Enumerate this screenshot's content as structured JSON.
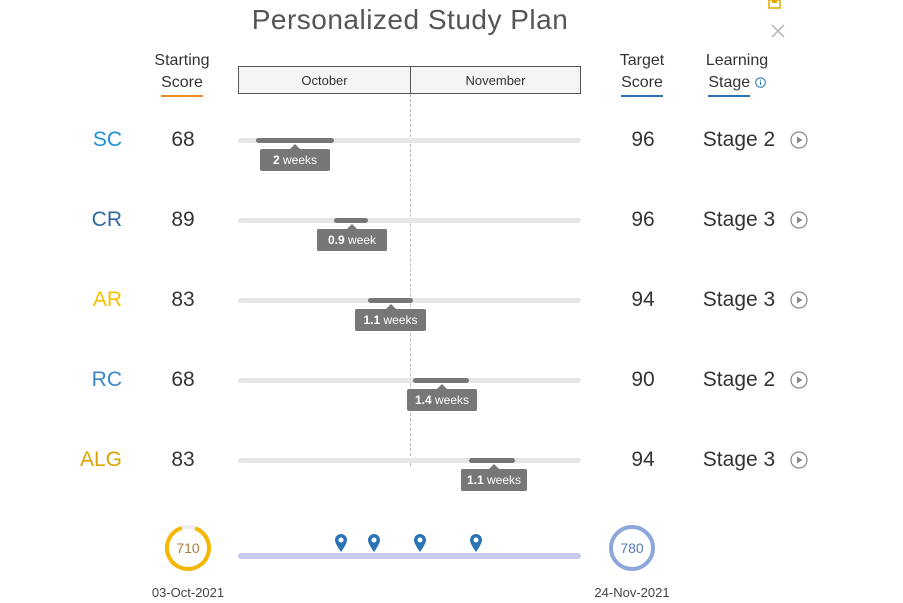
{
  "title": "Personalized Study Plan",
  "headers": {
    "starting_score": [
      "Starting",
      "Score"
    ],
    "target_score": [
      "Target",
      "Score"
    ],
    "learning_stage": [
      "Learning",
      "Stage"
    ]
  },
  "months": [
    "October",
    "November"
  ],
  "rows": [
    {
      "subject": "SC",
      "color": "#1e90d8",
      "start": "68",
      "target": "96",
      "stage": "Stage 2",
      "duration_num": "2",
      "duration_unit": " weeks"
    },
    {
      "subject": "CR",
      "color": "#2d6aa0",
      "start": "89",
      "target": "96",
      "stage": "Stage 3",
      "duration_num": "0.9",
      "duration_unit": " week"
    },
    {
      "subject": "AR",
      "color": "#f5c100",
      "start": "83",
      "target": "94",
      "stage": "Stage 3",
      "duration_num": "1.1",
      "duration_unit": " weeks"
    },
    {
      "subject": "RC",
      "color": "#3a86c8",
      "start": "68",
      "target": "90",
      "stage": "Stage 2",
      "duration_num": "1.4",
      "duration_unit": " weeks"
    },
    {
      "subject": "ALG",
      "color": "#d9a300",
      "start": "83",
      "target": "94",
      "stage": "Stage 3",
      "duration_num": "1.1",
      "duration_unit": " weeks"
    }
  ],
  "summary": {
    "start_score": "710",
    "start_date": "03-Oct-2021",
    "start_color": "#f5b800",
    "target_score": "780",
    "target_date": "24-Nov-2021",
    "target_color": "#8fa6d9",
    "timeline_color": "#c9c9ee",
    "pin_color": "#2a74b5"
  },
  "colors": {
    "starting_underline": "#f08a24",
    "target_underline": "#2a74b5",
    "stage_underline": "#2a74b5",
    "info_icon": "#2a74b5"
  }
}
